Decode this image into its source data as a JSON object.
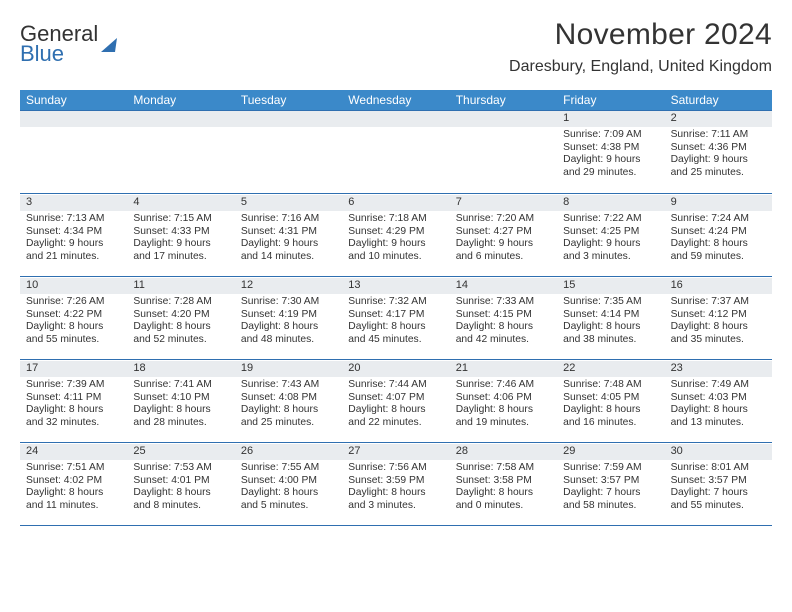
{
  "logo": {
    "line1": "General",
    "line2": "Blue"
  },
  "title": "November 2024",
  "location": "Daresbury, England, United Kingdom",
  "colors": {
    "header_bg": "#3b89c9",
    "header_text": "#ffffff",
    "numbar_bg": "#e9ecef",
    "rule": "#2f6fb0",
    "text": "#333333",
    "logo_accent": "#2f6fb0"
  },
  "dow": [
    "Sunday",
    "Monday",
    "Tuesday",
    "Wednesday",
    "Thursday",
    "Friday",
    "Saturday"
  ],
  "weeks": [
    [
      null,
      null,
      null,
      null,
      null,
      {
        "n": "1",
        "sunrise": "7:09 AM",
        "sunset": "4:38 PM",
        "daylight_h": 9,
        "daylight_m": 29
      },
      {
        "n": "2",
        "sunrise": "7:11 AM",
        "sunset": "4:36 PM",
        "daylight_h": 9,
        "daylight_m": 25
      }
    ],
    [
      {
        "n": "3",
        "sunrise": "7:13 AM",
        "sunset": "4:34 PM",
        "daylight_h": 9,
        "daylight_m": 21
      },
      {
        "n": "4",
        "sunrise": "7:15 AM",
        "sunset": "4:33 PM",
        "daylight_h": 9,
        "daylight_m": 17
      },
      {
        "n": "5",
        "sunrise": "7:16 AM",
        "sunset": "4:31 PM",
        "daylight_h": 9,
        "daylight_m": 14
      },
      {
        "n": "6",
        "sunrise": "7:18 AM",
        "sunset": "4:29 PM",
        "daylight_h": 9,
        "daylight_m": 10
      },
      {
        "n": "7",
        "sunrise": "7:20 AM",
        "sunset": "4:27 PM",
        "daylight_h": 9,
        "daylight_m": 6
      },
      {
        "n": "8",
        "sunrise": "7:22 AM",
        "sunset": "4:25 PM",
        "daylight_h": 9,
        "daylight_m": 3
      },
      {
        "n": "9",
        "sunrise": "7:24 AM",
        "sunset": "4:24 PM",
        "daylight_h": 8,
        "daylight_m": 59
      }
    ],
    [
      {
        "n": "10",
        "sunrise": "7:26 AM",
        "sunset": "4:22 PM",
        "daylight_h": 8,
        "daylight_m": 55
      },
      {
        "n": "11",
        "sunrise": "7:28 AM",
        "sunset": "4:20 PM",
        "daylight_h": 8,
        "daylight_m": 52
      },
      {
        "n": "12",
        "sunrise": "7:30 AM",
        "sunset": "4:19 PM",
        "daylight_h": 8,
        "daylight_m": 48
      },
      {
        "n": "13",
        "sunrise": "7:32 AM",
        "sunset": "4:17 PM",
        "daylight_h": 8,
        "daylight_m": 45
      },
      {
        "n": "14",
        "sunrise": "7:33 AM",
        "sunset": "4:15 PM",
        "daylight_h": 8,
        "daylight_m": 42
      },
      {
        "n": "15",
        "sunrise": "7:35 AM",
        "sunset": "4:14 PM",
        "daylight_h": 8,
        "daylight_m": 38
      },
      {
        "n": "16",
        "sunrise": "7:37 AM",
        "sunset": "4:12 PM",
        "daylight_h": 8,
        "daylight_m": 35
      }
    ],
    [
      {
        "n": "17",
        "sunrise": "7:39 AM",
        "sunset": "4:11 PM",
        "daylight_h": 8,
        "daylight_m": 32
      },
      {
        "n": "18",
        "sunrise": "7:41 AM",
        "sunset": "4:10 PM",
        "daylight_h": 8,
        "daylight_m": 28
      },
      {
        "n": "19",
        "sunrise": "7:43 AM",
        "sunset": "4:08 PM",
        "daylight_h": 8,
        "daylight_m": 25
      },
      {
        "n": "20",
        "sunrise": "7:44 AM",
        "sunset": "4:07 PM",
        "daylight_h": 8,
        "daylight_m": 22
      },
      {
        "n": "21",
        "sunrise": "7:46 AM",
        "sunset": "4:06 PM",
        "daylight_h": 8,
        "daylight_m": 19
      },
      {
        "n": "22",
        "sunrise": "7:48 AM",
        "sunset": "4:05 PM",
        "daylight_h": 8,
        "daylight_m": 16
      },
      {
        "n": "23",
        "sunrise": "7:49 AM",
        "sunset": "4:03 PM",
        "daylight_h": 8,
        "daylight_m": 13
      }
    ],
    [
      {
        "n": "24",
        "sunrise": "7:51 AM",
        "sunset": "4:02 PM",
        "daylight_h": 8,
        "daylight_m": 11
      },
      {
        "n": "25",
        "sunrise": "7:53 AM",
        "sunset": "4:01 PM",
        "daylight_h": 8,
        "daylight_m": 8
      },
      {
        "n": "26",
        "sunrise": "7:55 AM",
        "sunset": "4:00 PM",
        "daylight_h": 8,
        "daylight_m": 5
      },
      {
        "n": "27",
        "sunrise": "7:56 AM",
        "sunset": "3:59 PM",
        "daylight_h": 8,
        "daylight_m": 3
      },
      {
        "n": "28",
        "sunrise": "7:58 AM",
        "sunset": "3:58 PM",
        "daylight_h": 8,
        "daylight_m": 0
      },
      {
        "n": "29",
        "sunrise": "7:59 AM",
        "sunset": "3:57 PM",
        "daylight_h": 7,
        "daylight_m": 58
      },
      {
        "n": "30",
        "sunrise": "8:01 AM",
        "sunset": "3:57 PM",
        "daylight_h": 7,
        "daylight_m": 55
      }
    ]
  ],
  "labels": {
    "sunrise": "Sunrise:",
    "sunset": "Sunset:",
    "daylight_prefix": "Daylight:",
    "hours_word": "hours",
    "and_word": "and",
    "minutes_word": "minutes."
  }
}
